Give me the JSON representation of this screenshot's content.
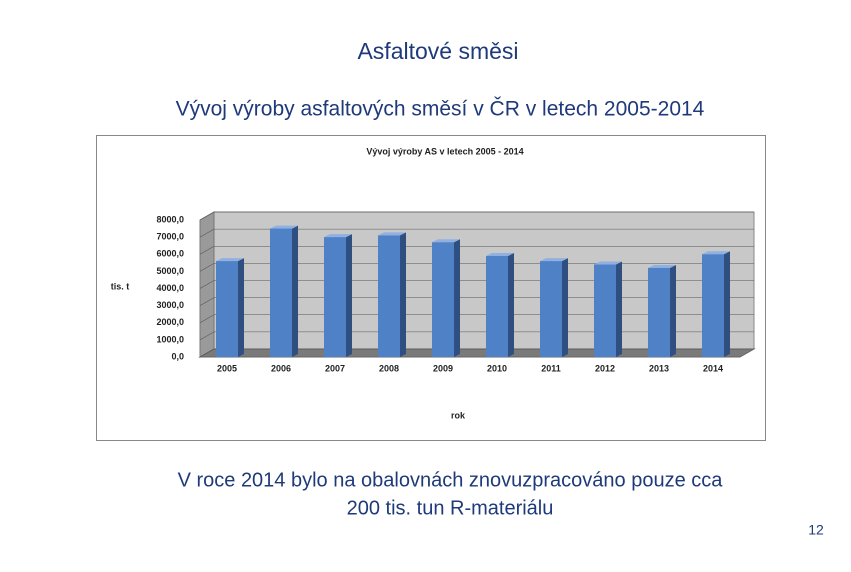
{
  "slide": {
    "title": "Asfaltové směsi",
    "subtitle": "Vývoj výroby asfaltových směsí v ČR v letech 2005-2014",
    "note_line1": "V roce 2014 bylo na obalovnách znovuzpracováno pouze cca",
    "note_line2": "200 tis. tun R-materiálu",
    "page_number": "12"
  },
  "chart_data": {
    "type": "bar",
    "title": "Vývoj výroby AS v letech 2005 - 2014",
    "y_label": "tis. t",
    "x_label": "rok",
    "categories": [
      "2005",
      "2006",
      "2007",
      "2008",
      "2009",
      "2010",
      "2011",
      "2012",
      "2013",
      "2014"
    ],
    "values": [
      5600,
      7500,
      7000,
      7100,
      6700,
      5900,
      5600,
      5400,
      5200,
      6000
    ],
    "color": "#4f81c7",
    "ylim": [
      0,
      8000
    ],
    "yticks": [
      {
        "value": 0,
        "label": "0,0"
      },
      {
        "value": 1000,
        "label": "1000,0"
      },
      {
        "value": 2000,
        "label": "2000,0"
      },
      {
        "value": 3000,
        "label": "3000,0"
      },
      {
        "value": 4000,
        "label": "4000,0"
      },
      {
        "value": 5000,
        "label": "5000,0"
      },
      {
        "value": 6000,
        "label": "6000,0"
      },
      {
        "value": 7000,
        "label": "7000,0"
      },
      {
        "value": 8000,
        "label": "8000,0"
      }
    ],
    "grid": true
  }
}
